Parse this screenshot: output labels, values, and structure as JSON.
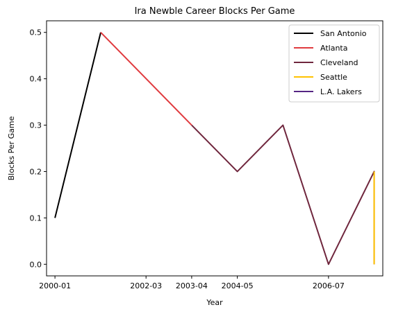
{
  "chart_data": {
    "type": "line",
    "title": "Ira Newble Career Blocks Per Game",
    "xlabel": "Year",
    "ylabel": "Blocks Per Game",
    "x_ticks": [
      "2000-01",
      "2002-03",
      "2003-04",
      "2004-05",
      "2006-07"
    ],
    "xlim": [
      "1999-10-20",
      "2007-10-15"
    ],
    "ylim": [
      -0.025,
      0.525
    ],
    "y_ticks": [
      0.0,
      0.1,
      0.2,
      0.3,
      0.4,
      0.5
    ],
    "y_tick_labels": [
      "0.0",
      "0.1",
      "0.2",
      "0.3",
      "0.4",
      "0.5"
    ],
    "grid": false,
    "legend_position": "top-right",
    "series": [
      {
        "name": "San Antonio",
        "color": "#000000",
        "points": [
          [
            "2000-01-01",
            0.1
          ],
          [
            "2001-02-01",
            0.5
          ]
        ]
      },
      {
        "name": "Atlanta",
        "color": "#e03a3e",
        "points": [
          [
            "2001-02-01",
            0.5
          ],
          [
            "2003-04-01",
            0.3
          ]
        ]
      },
      {
        "name": "Cleveland",
        "color": "#6f263d",
        "points": [
          [
            "2003-04-01",
            0.3
          ],
          [
            "2004-05-01",
            0.2
          ],
          [
            "2005-06-01",
            0.3
          ],
          [
            "2006-07-01",
            0.0
          ],
          [
            "2007-08-01",
            0.2
          ],
          [
            "2007-08-01",
            0.0
          ]
        ]
      },
      {
        "name": "Seattle",
        "color": "#ffc200",
        "points": [
          [
            "2007-08-01",
            0.0
          ],
          [
            "2007-08-01",
            0.2
          ]
        ]
      },
      {
        "name": "L.A. Lakers",
        "color": "#552583",
        "points": [
          [
            "2007-08-01",
            0.2
          ],
          [
            "2007-08-01",
            0.2
          ]
        ]
      }
    ]
  }
}
